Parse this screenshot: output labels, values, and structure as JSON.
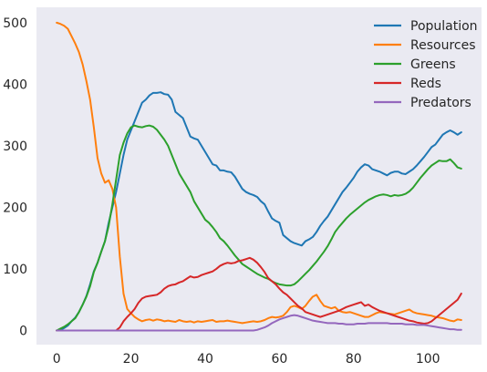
{
  "chart_data": {
    "type": "line",
    "title": "",
    "xlabel": "",
    "ylabel": "",
    "xlim": [
      -5.45,
      114.45
    ],
    "ylim": [
      -23,
      525
    ],
    "xticks": [
      0,
      20,
      40,
      60,
      80,
      100
    ],
    "yticks": [
      0,
      100,
      200,
      300,
      400,
      500
    ],
    "grid": false,
    "legend_position": "top-right",
    "x": [
      0,
      1,
      2,
      3,
      4,
      5,
      6,
      7,
      8,
      9,
      10,
      11,
      12,
      13,
      14,
      15,
      16,
      17,
      18,
      19,
      20,
      21,
      22,
      23,
      24,
      25,
      26,
      27,
      28,
      29,
      30,
      31,
      32,
      33,
      34,
      35,
      36,
      37,
      38,
      39,
      40,
      41,
      42,
      43,
      44,
      45,
      46,
      47,
      48,
      49,
      50,
      51,
      52,
      53,
      54,
      55,
      56,
      57,
      58,
      59,
      60,
      61,
      62,
      63,
      64,
      65,
      66,
      67,
      68,
      69,
      70,
      71,
      72,
      73,
      74,
      75,
      76,
      77,
      78,
      79,
      80,
      81,
      82,
      83,
      84,
      85,
      86,
      87,
      88,
      89,
      90,
      91,
      92,
      93,
      94,
      95,
      96,
      97,
      98,
      99,
      100,
      101,
      102,
      103,
      104,
      105,
      106,
      107,
      108,
      109
    ],
    "series": [
      {
        "name": "Population",
        "color": "#1f77b4",
        "values": [
          0,
          1,
          4,
          8,
          15,
          21,
          30,
          42,
          56,
          75,
          96,
          110,
          128,
          145,
          175,
          200,
          225,
          255,
          285,
          310,
          325,
          340,
          355,
          370,
          375,
          382,
          386,
          386,
          387,
          384,
          383,
          375,
          355,
          350,
          345,
          330,
          315,
          312,
          310,
          300,
          290,
          280,
          270,
          268,
          260,
          260,
          258,
          257,
          250,
          240,
          230,
          225,
          222,
          220,
          217,
          210,
          205,
          193,
          182,
          178,
          175,
          155,
          150,
          145,
          142,
          140,
          138,
          145,
          148,
          152,
          160,
          170,
          178,
          185,
          195,
          205,
          215,
          225,
          232,
          240,
          248,
          258,
          265,
          270,
          268,
          262,
          260,
          258,
          255,
          252,
          256,
          258,
          258,
          255,
          254,
          258,
          262,
          268,
          275,
          282,
          290,
          298,
          302,
          310,
          318,
          322,
          325,
          322,
          318,
          322
        ]
      },
      {
        "name": "Resources",
        "color": "#ff7f0e",
        "values": [
          500,
          498,
          495,
          490,
          478,
          466,
          452,
          432,
          405,
          375,
          330,
          280,
          255,
          240,
          244,
          230,
          200,
          120,
          60,
          35,
          28,
          22,
          18,
          15,
          17,
          18,
          16,
          18,
          17,
          15,
          16,
          15,
          14,
          17,
          15,
          14,
          15,
          13,
          15,
          14,
          15,
          16,
          17,
          14,
          15,
          15,
          16,
          15,
          14,
          13,
          12,
          13,
          14,
          15,
          14,
          15,
          17,
          20,
          22,
          21,
          22,
          24,
          30,
          38,
          40,
          38,
          35,
          40,
          48,
          55,
          58,
          48,
          40,
          38,
          36,
          38,
          32,
          30,
          29,
          30,
          28,
          26,
          24,
          22,
          22,
          25,
          28,
          30,
          29,
          28,
          27,
          26,
          28,
          30,
          32,
          34,
          30,
          28,
          27,
          26,
          25,
          24,
          22,
          21,
          20,
          18,
          16,
          15,
          18,
          17
        ]
      },
      {
        "name": "Greens",
        "color": "#2ca02c",
        "values": [
          0,
          3,
          6,
          10,
          15,
          20,
          30,
          42,
          55,
          72,
          95,
          110,
          128,
          145,
          170,
          205,
          245,
          285,
          305,
          320,
          330,
          333,
          331,
          330,
          332,
          333,
          331,
          326,
          318,
          310,
          300,
          285,
          270,
          255,
          245,
          235,
          225,
          210,
          200,
          190,
          180,
          175,
          168,
          160,
          150,
          145,
          138,
          130,
          122,
          115,
          108,
          104,
          100,
          96,
          92,
          89,
          86,
          84,
          80,
          77,
          75,
          74,
          73,
          73,
          75,
          80,
          86,
          92,
          98,
          105,
          112,
          120,
          128,
          137,
          148,
          160,
          168,
          175,
          182,
          188,
          193,
          198,
          203,
          208,
          212,
          215,
          218,
          220,
          221,
          220,
          218,
          220,
          219,
          220,
          222,
          226,
          232,
          240,
          248,
          255,
          262,
          268,
          272,
          276,
          275,
          275,
          278,
          272,
          265,
          263
        ]
      },
      {
        "name": "Reds",
        "color": "#d62728",
        "values": [
          0,
          0,
          0,
          0,
          0,
          0,
          0,
          0,
          0,
          0,
          0,
          0,
          0,
          0,
          0,
          0,
          0,
          5,
          15,
          22,
          28,
          35,
          45,
          52,
          55,
          56,
          57,
          58,
          62,
          68,
          72,
          74,
          75,
          78,
          80,
          84,
          88,
          86,
          87,
          90,
          92,
          94,
          96,
          100,
          105,
          108,
          110,
          109,
          110,
          113,
          114,
          116,
          118,
          115,
          110,
          103,
          95,
          85,
          80,
          75,
          68,
          62,
          58,
          52,
          46,
          40,
          36,
          30,
          28,
          26,
          24,
          22,
          24,
          26,
          28,
          30,
          32,
          35,
          38,
          40,
          42,
          44,
          46,
          40,
          42,
          38,
          35,
          32,
          30,
          28,
          26,
          24,
          22,
          20,
          18,
          16,
          15,
          13,
          12,
          11,
          12,
          15,
          20,
          25,
          30,
          35,
          40,
          45,
          50,
          60
        ]
      },
      {
        "name": "Predators",
        "color": "#9467bd",
        "values": [
          0,
          0,
          0,
          0,
          0,
          0,
          0,
          0,
          0,
          0,
          0,
          0,
          0,
          0,
          0,
          0,
          0,
          0,
          0,
          0,
          0,
          0,
          0,
          0,
          0,
          0,
          0,
          0,
          0,
          0,
          0,
          0,
          0,
          0,
          0,
          0,
          0,
          0,
          0,
          0,
          0,
          0,
          0,
          0,
          0,
          0,
          0,
          0,
          0,
          0,
          0,
          0,
          0,
          0,
          1,
          3,
          5,
          8,
          12,
          15,
          18,
          20,
          22,
          24,
          25,
          24,
          22,
          20,
          18,
          16,
          15,
          14,
          13,
          12,
          12,
          12,
          11,
          11,
          10,
          10,
          10,
          11,
          11,
          11,
          12,
          12,
          12,
          12,
          12,
          12,
          11,
          11,
          11,
          11,
          10,
          10,
          10,
          9,
          9,
          9,
          8,
          7,
          6,
          5,
          4,
          3,
          2,
          2,
          1,
          1
        ]
      }
    ]
  }
}
